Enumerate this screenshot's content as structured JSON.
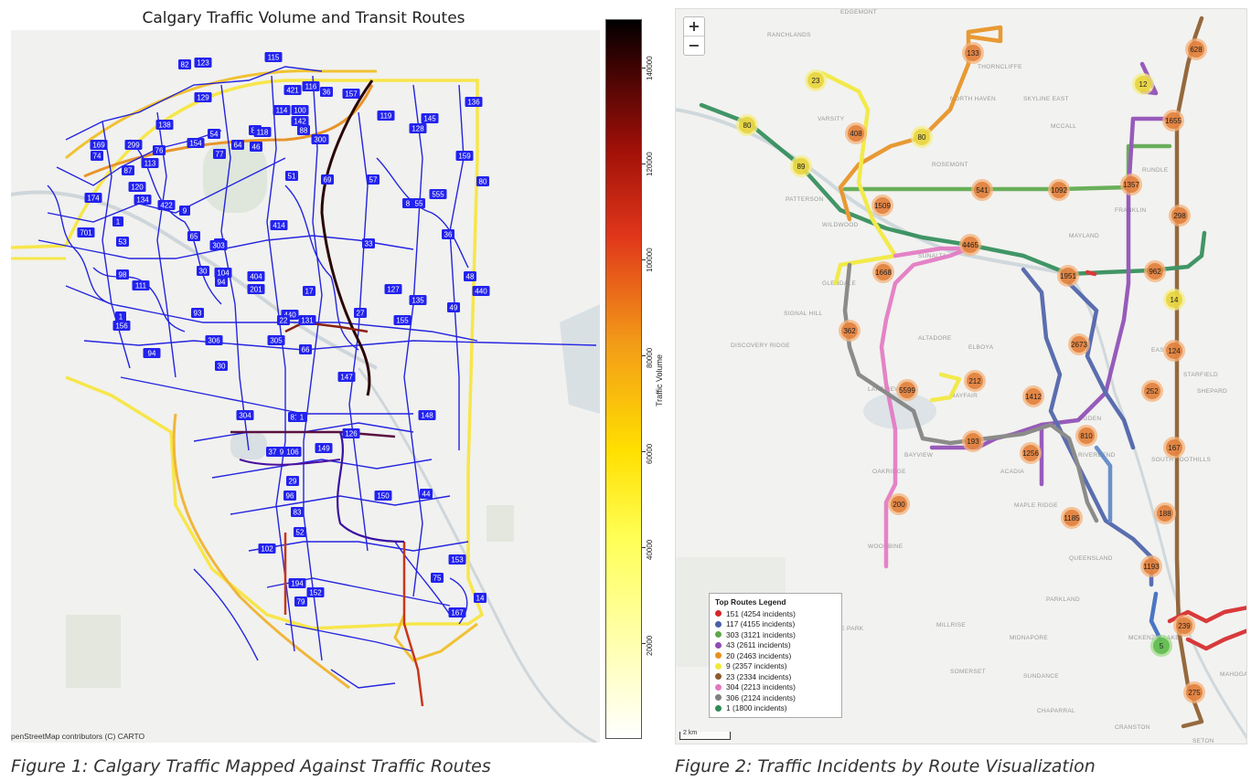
{
  "figure1": {
    "title": "Calgary Traffic Volume and Transit Routes",
    "attribution": "penStreetMap contributors (C) CARTO",
    "caption": "Figure 1: Calgary Traffic Mapped Against Traffic Routes",
    "colorbar": {
      "label": "Traffic Volume",
      "ticks": [
        "20000",
        "40000",
        "60000",
        "80000",
        "100000",
        "120000",
        "140000"
      ],
      "colors": [
        "#ffffff",
        "#ffff55",
        "#f39b18",
        "#e0361a",
        "#a01008",
        "#000000"
      ]
    },
    "route_color": "#2222ee",
    "route_labels": [
      "82",
      "123",
      "115",
      "421",
      "116",
      "36",
      "157",
      "129",
      "114",
      "100",
      "142",
      "119",
      "145",
      "136",
      "138",
      "54",
      "82",
      "118",
      "88",
      "300",
      "128",
      "169",
      "299",
      "76",
      "154",
      "77",
      "64",
      "46",
      "159",
      "74",
      "113",
      "87",
      "120",
      "134",
      "9",
      "1",
      "174",
      "422",
      "65",
      "3",
      "69",
      "57",
      "51",
      "414",
      "8",
      "55",
      "555",
      "80",
      "701",
      "53",
      "303",
      "33",
      "36",
      "98",
      "30",
      "104",
      "94",
      "201",
      "404",
      "17",
      "127",
      "135",
      "440",
      "111",
      "93",
      "440",
      "22",
      "131",
      "27",
      "155",
      "49",
      "48",
      "1",
      "156",
      "306",
      "305",
      "66",
      "30",
      "147",
      "164",
      "94",
      "304",
      "81",
      "148",
      "1",
      "37",
      "9",
      "106",
      "149",
      "126",
      "29",
      "96",
      "150",
      "44",
      "83",
      "52",
      "102",
      "194",
      "152",
      "153",
      "75",
      "14",
      "79",
      "167"
    ]
  },
  "figure2": {
    "zoom_in": "+",
    "zoom_out": "−",
    "scale_label": "2 km",
    "caption": "Figure 2: Traffic Incidents by Route Visualization",
    "legend": {
      "title": "Top Routes Legend",
      "items": [
        {
          "label": "151 (4254 incidents)",
          "color": "#d62728"
        },
        {
          "label": "117 (4155 incidents)",
          "color": "#4a5fa8"
        },
        {
          "label": "303 (3121 incidents)",
          "color": "#5ba84a"
        },
        {
          "label": "43 (2611 incidents)",
          "color": "#8e4bb5"
        },
        {
          "label": "20 (2463 incidents)",
          "color": "#e8901f"
        },
        {
          "label": "9 (2357 incidents)",
          "color": "#f2ea3a"
        },
        {
          "label": "23 (2334 incidents)",
          "color": "#8c5a2b"
        },
        {
          "label": "304 (2213 incidents)",
          "color": "#e377c2"
        },
        {
          "label": "306 (2124 incidents)",
          "color": "#808080"
        },
        {
          "label": "1 (1800 incidents)",
          "color": "#2e8b57"
        }
      ]
    },
    "clusters": [
      {
        "n": "133",
        "kind": "orange"
      },
      {
        "n": "23",
        "kind": "yellow"
      },
      {
        "n": "12",
        "kind": "yellow"
      },
      {
        "n": "628",
        "kind": "orange"
      },
      {
        "n": "80",
        "kind": "yellow"
      },
      {
        "n": "408",
        "kind": "orange"
      },
      {
        "n": "80",
        "kind": "yellow"
      },
      {
        "n": "1655",
        "kind": "orange"
      },
      {
        "n": "89",
        "kind": "yellow"
      },
      {
        "n": "541",
        "kind": "orange"
      },
      {
        "n": "1092",
        "kind": "orange"
      },
      {
        "n": "1357",
        "kind": "orange"
      },
      {
        "n": "1509",
        "kind": "orange"
      },
      {
        "n": "298",
        "kind": "orange"
      },
      {
        "n": "4465",
        "kind": "orange"
      },
      {
        "n": "1668",
        "kind": "orange"
      },
      {
        "n": "1951",
        "kind": "orange"
      },
      {
        "n": "962",
        "kind": "orange"
      },
      {
        "n": "14",
        "kind": "yellow"
      },
      {
        "n": "362",
        "kind": "orange"
      },
      {
        "n": "2673",
        "kind": "orange"
      },
      {
        "n": "124",
        "kind": "orange"
      },
      {
        "n": "5599",
        "kind": "orange"
      },
      {
        "n": "212",
        "kind": "orange"
      },
      {
        "n": "1412",
        "kind": "orange"
      },
      {
        "n": "252",
        "kind": "orange"
      },
      {
        "n": "810",
        "kind": "orange"
      },
      {
        "n": "193",
        "kind": "orange"
      },
      {
        "n": "1256",
        "kind": "orange"
      },
      {
        "n": "167",
        "kind": "orange"
      },
      {
        "n": "200",
        "kind": "orange"
      },
      {
        "n": "1185",
        "kind": "orange"
      },
      {
        "n": "188",
        "kind": "orange"
      },
      {
        "n": "1193",
        "kind": "orange"
      },
      {
        "n": "239",
        "kind": "orange"
      },
      {
        "n": "5",
        "kind": "green"
      },
      {
        "n": "275",
        "kind": "orange"
      }
    ],
    "places": [
      "EDGEMONT",
      "RANCHLANDS",
      "THORNCLIFFE",
      "SKYLINE EAST",
      "NORTH HAVEN",
      "MCCALL",
      "VARSITY",
      "ROSEMONT",
      "RUNDLE",
      "PATTERSON",
      "WILDWOOD",
      "MAYLAND",
      "FRANKLIN",
      "GLENDALE",
      "SUNALTA",
      "SIGNAL HILL",
      "DISCOVERY RIDGE",
      "ALTADORE",
      "ELBOYA",
      "LAKEVIEW",
      "MAYFAIR",
      "STARFIELD",
      "BAYVIEW",
      "OAKRIDGE",
      "ACADIA",
      "RIVERBEND",
      "SOUTH FOOTHILLS",
      "MAPLE RIDGE",
      "WOODBINE",
      "QUEENSLAND",
      "PARKLAND",
      "ALPINE PARK",
      "MILLRISE",
      "MIDNAPORE",
      "SUNDANCE",
      "SOMERSET",
      "CHAPARRAL",
      "CRANSTON",
      "SETON",
      "MAHOGANY",
      "MCKENZIE LAKE",
      "OGDEN",
      "EAST",
      "SHEPARD"
    ]
  }
}
